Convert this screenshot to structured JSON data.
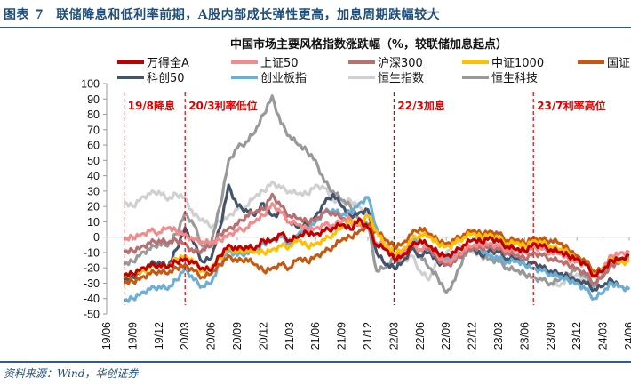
{
  "figure": {
    "label": "图表",
    "number": "7",
    "title": "联储降息和低利率前期，A股内部成长弹性更高，加息周期跌幅较大",
    "source": "资料来源：Wind，华创证券"
  },
  "chart_data": {
    "type": "line",
    "title": "中国市场主要风格指数涨跌幅（%，较联储加息起点）",
    "xlabel": "",
    "ylabel": "",
    "ylim": [
      -50,
      100
    ],
    "yticks": [
      -50,
      -40,
      -30,
      -20,
      -10,
      0,
      10,
      20,
      30,
      40,
      50,
      60,
      70,
      80,
      90,
      100
    ],
    "xtick_labels": [
      "19/06",
      "19/09",
      "19/12",
      "20/03",
      "20/06",
      "20/09",
      "20/12",
      "21/03",
      "21/06",
      "21/09",
      "21/12",
      "22/03",
      "22/06",
      "22/09",
      "22/12",
      "23/03",
      "23/06",
      "23/09",
      "23/12",
      "24/03",
      "24/06"
    ],
    "x_start": "2019/08",
    "x_frequency": "monthly",
    "grid": false,
    "legend_position": "top",
    "annotations": [
      {
        "x": "2019/08",
        "text": "19/8降息"
      },
      {
        "x": "2020/03",
        "text": "20/3利率低位"
      },
      {
        "x": "2022/03",
        "text": "22/3加息"
      },
      {
        "x": "2023/07",
        "text": "23/7利率高位"
      }
    ],
    "series": [
      {
        "name": "万得全A",
        "color": "#c00000",
        "values": [
          -25,
          -24,
          -20,
          -19,
          -18,
          -20,
          -16,
          -14,
          -17,
          -20,
          -22,
          -12,
          -5,
          -8,
          -6,
          -8,
          -2,
          -2,
          2,
          -2,
          0,
          3,
          2,
          4,
          6,
          8,
          5,
          12,
          6,
          -5,
          -8,
          -14,
          -12,
          -6,
          -2,
          -6,
          -10,
          -12,
          -10,
          -5,
          -2,
          -3,
          0,
          -3,
          -6,
          -8,
          -9,
          -4,
          -6,
          -8,
          -10,
          -12,
          -14,
          -18,
          -25,
          -22,
          -15,
          -14,
          -12
        ]
      },
      {
        "name": "上证50",
        "color": "#f28b8b",
        "values": [
          -2,
          0,
          2,
          4,
          3,
          6,
          4,
          2,
          -2,
          -3,
          -4,
          -2,
          2,
          4,
          6,
          10,
          14,
          22,
          16,
          10,
          8,
          5,
          6,
          8,
          8,
          10,
          12,
          8,
          6,
          -4,
          -6,
          -12,
          -10,
          -4,
          -8,
          -6,
          -12,
          -16,
          -14,
          -8,
          -6,
          -5,
          -4,
          -6,
          -8,
          -9,
          -10,
          -6,
          -8,
          -10,
          -11,
          -14,
          -16,
          -18,
          -26,
          -20,
          -12,
          -10,
          -10
        ]
      },
      {
        "name": "沪深300",
        "color": "#b87070",
        "values": [
          -10,
          -9,
          -6,
          -4,
          -2,
          -4,
          -2,
          -4,
          -10,
          -8,
          -6,
          2,
          6,
          8,
          14,
          16,
          18,
          28,
          20,
          14,
          12,
          10,
          12,
          16,
          16,
          12,
          10,
          8,
          6,
          -4,
          -8,
          -14,
          -12,
          -6,
          -8,
          -8,
          -14,
          -18,
          -16,
          -10,
          -8,
          -7,
          -6,
          -8,
          -10,
          -12,
          -14,
          -10,
          -12,
          -14,
          -16,
          -18,
          -20,
          -24,
          -30,
          -26,
          -18,
          -16,
          -16
        ]
      },
      {
        "name": "中证1000",
        "color": "#ffc000",
        "values": [
          -26,
          -24,
          -22,
          -20,
          -18,
          -20,
          -14,
          -12,
          -16,
          -22,
          -20,
          -14,
          -6,
          -10,
          -8,
          -10,
          -10,
          -8,
          -6,
          -6,
          -2,
          -6,
          -4,
          -2,
          2,
          6,
          10,
          10,
          14,
          4,
          -6,
          -10,
          -8,
          -2,
          2,
          0,
          -4,
          -6,
          -4,
          0,
          2,
          0,
          2,
          -1,
          -4,
          -4,
          -6,
          -2,
          -4,
          -6,
          -8,
          -10,
          -14,
          -18,
          -24,
          -22,
          -14,
          -16,
          -16
        ]
      },
      {
        "name": "国证2000",
        "color": "#c65911",
        "values": [
          -30,
          -29,
          -26,
          -24,
          -22,
          -24,
          -20,
          -18,
          -22,
          -26,
          -24,
          -18,
          -12,
          -16,
          -14,
          -18,
          -22,
          -20,
          -18,
          -20,
          -14,
          -16,
          -12,
          -10,
          -6,
          -2,
          0,
          4,
          8,
          4,
          -2,
          -6,
          -4,
          2,
          6,
          2,
          -2,
          -4,
          -2,
          2,
          4,
          2,
          4,
          2,
          -2,
          -2,
          -4,
          0,
          -2,
          -2,
          -4,
          -8,
          -12,
          -16,
          -22,
          -22,
          -14,
          -14,
          -12
        ]
      },
      {
        "name": "科创50",
        "color": "#44546a",
        "values": [
          -28,
          -26,
          -22,
          -18,
          -16,
          -20,
          -8,
          6,
          -4,
          -16,
          -14,
          6,
          34,
          20,
          18,
          14,
          22,
          14,
          16,
          10,
          6,
          8,
          14,
          22,
          28,
          20,
          14,
          16,
          18,
          -10,
          -18,
          -20,
          -16,
          -8,
          -12,
          -10,
          -16,
          -18,
          -16,
          -10,
          -8,
          -12,
          -8,
          -10,
          -14,
          -14,
          -18,
          -16,
          -20,
          -22,
          -24,
          -26,
          -28,
          -30,
          -34,
          -32,
          -28,
          -32,
          -34
        ]
      },
      {
        "name": "创业板指",
        "color": "#6baed6",
        "values": [
          -42,
          -40,
          -36,
          -34,
          -32,
          -34,
          -28,
          -20,
          -28,
          -32,
          -30,
          -18,
          -8,
          -12,
          -10,
          -10,
          -4,
          -2,
          0,
          -4,
          2,
          6,
          10,
          16,
          18,
          14,
          16,
          22,
          26,
          6,
          -8,
          -10,
          -12,
          -2,
          -2,
          -6,
          -12,
          -14,
          -12,
          -8,
          -6,
          -8,
          -12,
          -14,
          -16,
          -16,
          -18,
          -20,
          -22,
          -24,
          -26,
          -28,
          -30,
          -34,
          -40,
          -36,
          -30,
          -32,
          -34
        ]
      },
      {
        "name": "恒生指数",
        "color": "#d0d0d0",
        "values": [
          22,
          20,
          26,
          28,
          30,
          24,
          28,
          26,
          14,
          12,
          6,
          10,
          14,
          18,
          20,
          26,
          30,
          36,
          32,
          30,
          28,
          28,
          34,
          32,
          24,
          22,
          24,
          20,
          14,
          -6,
          -4,
          -10,
          -16,
          -12,
          -22,
          -28,
          -16,
          -10,
          -4,
          -6,
          -10,
          -12,
          -10,
          -14,
          -20,
          -22,
          -24,
          -26,
          -28,
          -30,
          -32,
          -28,
          -24,
          -28,
          -30,
          -20,
          -16,
          -14,
          -14
        ]
      },
      {
        "name": "恒生科技",
        "color": "#999999",
        "values": [
          -18,
          -16,
          -10,
          -8,
          -4,
          -6,
          2,
          16,
          8,
          -6,
          -4,
          20,
          50,
          58,
          62,
          68,
          80,
          92,
          74,
          66,
          60,
          56,
          50,
          36,
          30,
          24,
          20,
          12,
          8,
          -22,
          -20,
          -14,
          -16,
          -4,
          -12,
          -20,
          -26,
          -36,
          -28,
          -12,
          -8,
          -12,
          -14,
          -16,
          -20,
          -22,
          -24,
          -26,
          -28,
          -30,
          -28,
          -24,
          -20,
          -26,
          -32,
          -24,
          -18,
          -16,
          -14
        ]
      }
    ]
  }
}
